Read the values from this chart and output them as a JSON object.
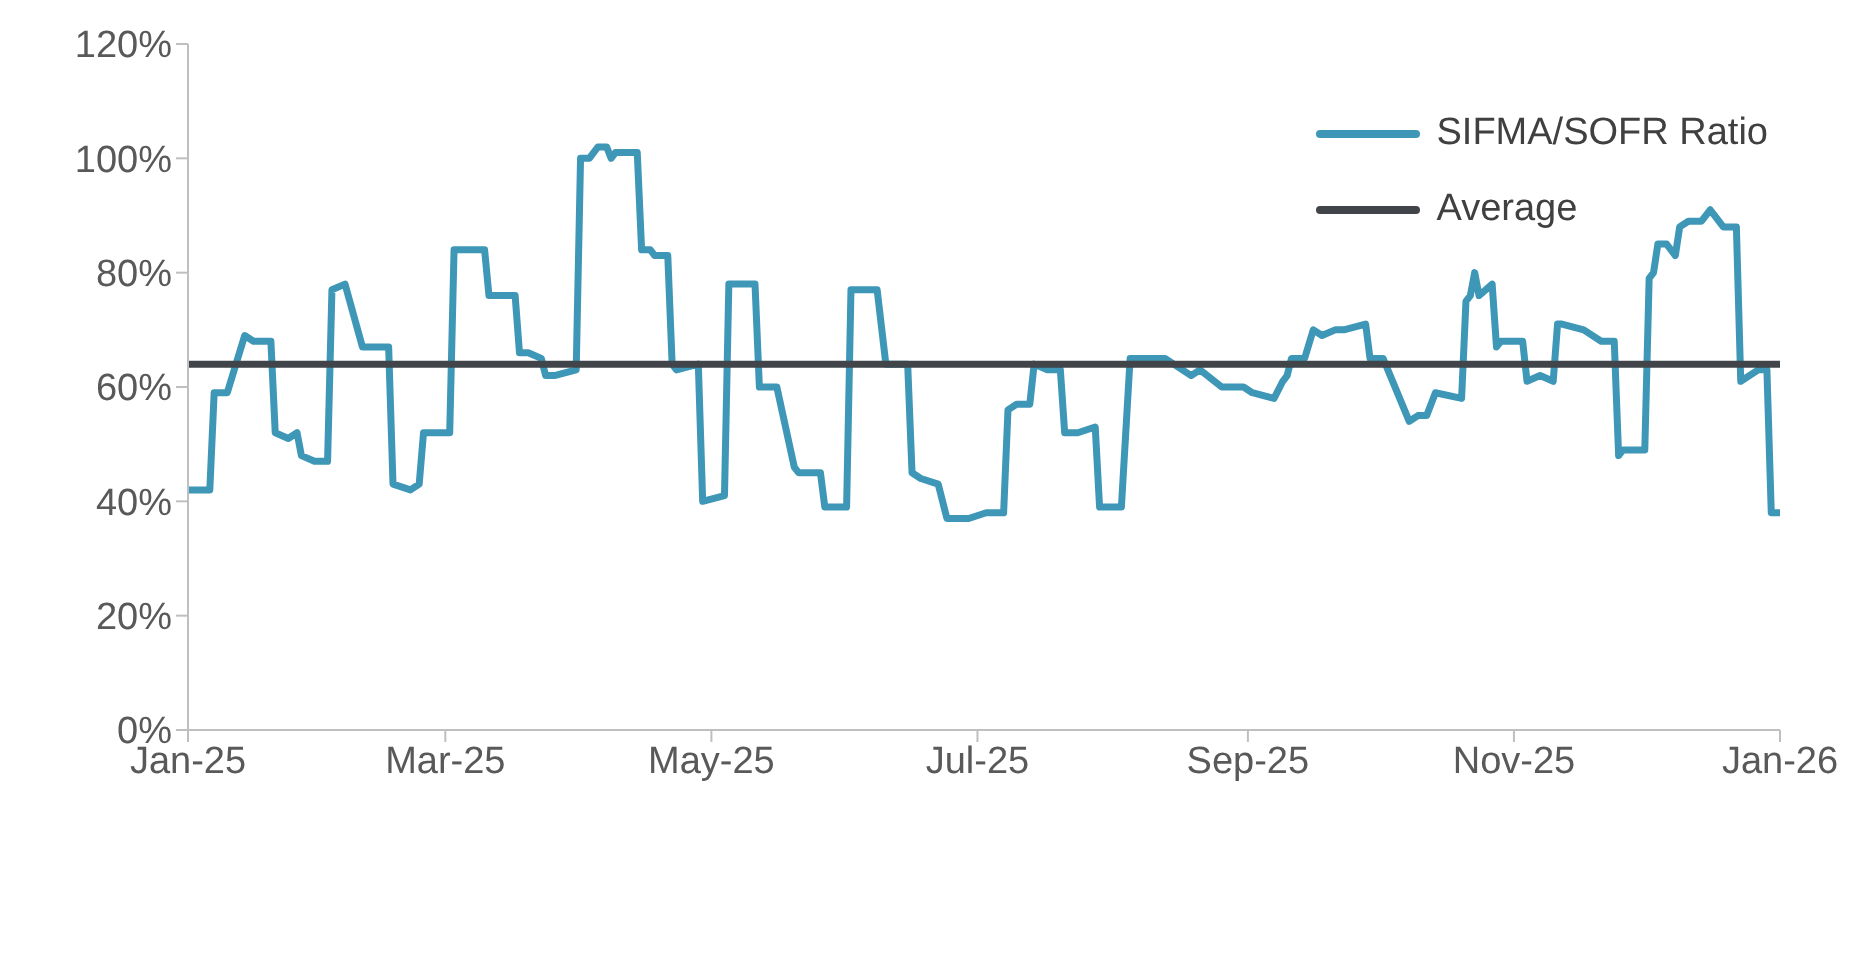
{
  "chart_data": {
    "type": "line",
    "xlim": [
      "2025-01-01",
      "2026-01-01"
    ],
    "ylim": [
      0,
      120
    ],
    "xticks": [
      {
        "value": "2025-01-01",
        "label": "Jan-25"
      },
      {
        "value": "2025-03-01",
        "label": "Mar-25"
      },
      {
        "value": "2025-05-01",
        "label": "May-25"
      },
      {
        "value": "2025-07-01",
        "label": "Jul-25"
      },
      {
        "value": "2025-09-01",
        "label": "Sep-25"
      },
      {
        "value": "2025-11-01",
        "label": "Nov-25"
      },
      {
        "value": "2026-01-01",
        "label": "Jan-26"
      }
    ],
    "yticks": [
      {
        "value": 0,
        "label": "0%"
      },
      {
        "value": 20,
        "label": "20%"
      },
      {
        "value": 40,
        "label": "40%"
      },
      {
        "value": 60,
        "label": "60%"
      },
      {
        "value": 80,
        "label": "80%"
      },
      {
        "value": 100,
        "label": "100%"
      },
      {
        "value": 120,
        "label": "120%"
      }
    ],
    "legend": "top right",
    "marker": "none",
    "line_style": "solid",
    "series": [
      {
        "name": "SIFMA/SOFR Ratio",
        "color": "#3e97b6",
        "x": [
          "2025-01-01",
          "2025-01-06",
          "2025-01-07",
          "2025-01-10",
          "2025-01-14",
          "2025-01-16",
          "2025-01-20",
          "2025-01-21",
          "2025-01-24",
          "2025-01-26",
          "2025-01-27",
          "2025-01-30",
          "2025-02-02",
          "2025-02-03",
          "2025-02-06",
          "2025-02-10",
          "2025-02-12",
          "2025-02-16",
          "2025-02-17",
          "2025-02-21",
          "2025-02-23",
          "2025-02-24",
          "2025-03-02",
          "2025-03-03",
          "2025-03-06",
          "2025-03-10",
          "2025-03-11",
          "2025-03-13",
          "2025-03-17",
          "2025-03-18",
          "2025-03-20",
          "2025-03-23",
          "2025-03-24",
          "2025-03-26",
          "2025-03-31",
          "2025-04-01",
          "2025-04-03",
          "2025-04-05",
          "2025-04-07",
          "2025-04-08",
          "2025-04-09",
          "2025-04-14",
          "2025-04-15",
          "2025-04-17",
          "2025-04-18",
          "2025-04-21",
          "2025-04-22",
          "2025-04-23",
          "2025-04-28",
          "2025-04-29",
          "2025-05-04",
          "2025-05-05",
          "2025-05-11",
          "2025-05-12",
          "2025-05-16",
          "2025-05-20",
          "2025-05-21",
          "2025-05-26",
          "2025-05-27",
          "2025-06-01",
          "2025-06-02",
          "2025-06-08",
          "2025-06-10",
          "2025-06-15",
          "2025-06-16",
          "2025-06-18",
          "2025-06-22",
          "2025-06-24",
          "2025-06-25",
          "2025-06-29",
          "2025-07-03",
          "2025-07-07",
          "2025-07-08",
          "2025-07-10",
          "2025-07-13",
          "2025-07-14",
          "2025-07-17",
          "2025-07-20",
          "2025-07-21",
          "2025-07-24",
          "2025-07-28",
          "2025-07-29",
          "2025-08-03",
          "2025-08-05",
          "2025-08-07",
          "2025-08-13",
          "2025-08-19",
          "2025-08-21",
          "2025-08-26",
          "2025-08-31",
          "2025-09-02",
          "2025-09-07",
          "2025-09-09",
          "2025-09-10",
          "2025-09-11",
          "2025-09-14",
          "2025-09-16",
          "2025-09-18",
          "2025-09-21",
          "2025-09-23",
          "2025-09-28",
          "2025-09-29",
          "2025-10-02",
          "2025-10-08",
          "2025-10-10",
          "2025-10-12",
          "2025-10-14",
          "2025-10-20",
          "2025-10-21",
          "2025-10-22",
          "2025-10-23",
          "2025-10-24",
          "2025-10-27",
          "2025-10-28",
          "2025-10-29",
          "2025-11-03",
          "2025-11-04",
          "2025-11-07",
          "2025-11-10",
          "2025-11-11",
          "2025-11-12",
          "2025-11-17",
          "2025-11-21",
          "2025-11-24",
          "2025-11-25",
          "2025-11-26",
          "2025-12-01",
          "2025-12-02",
          "2025-12-03",
          "2025-12-04",
          "2025-12-06",
          "2025-12-08",
          "2025-12-09",
          "2025-12-11",
          "2025-12-14",
          "2025-12-16",
          "2025-12-19",
          "2025-12-22",
          "2025-12-23",
          "2025-12-27",
          "2025-12-29",
          "2025-12-30",
          "2026-01-01"
        ],
        "values": [
          42,
          42,
          59,
          59,
          69,
          68,
          68,
          52,
          51,
          52,
          48,
          47,
          47,
          77,
          78,
          67,
          67,
          67,
          43,
          42,
          43,
          52,
          52,
          84,
          84,
          84,
          76,
          76,
          76,
          66,
          66,
          65,
          62,
          62,
          63,
          100,
          100,
          102,
          102,
          100,
          101,
          101,
          84,
          84,
          83,
          83,
          64,
          63,
          64,
          40,
          41,
          78,
          78,
          60,
          60,
          46,
          45,
          45,
          39,
          39,
          77,
          77,
          64,
          64,
          45,
          44,
          43,
          37,
          37,
          37,
          38,
          38,
          56,
          57,
          57,
          64,
          63,
          63,
          52,
          52,
          53,
          39,
          39,
          65,
          65,
          65,
          62,
          63,
          60,
          60,
          59,
          58,
          61,
          62,
          65,
          65,
          70,
          69,
          70,
          70,
          71,
          65,
          65,
          54,
          55,
          55,
          59,
          58,
          75,
          76,
          80,
          76,
          78,
          67,
          68,
          68,
          61,
          62,
          61,
          71,
          71,
          70,
          68,
          68,
          48,
          49,
          49,
          79,
          80,
          85,
          85,
          83,
          88,
          89,
          89,
          91,
          88,
          88,
          61,
          63,
          63,
          38,
          38
        ]
      },
      {
        "name": "Average",
        "color": "#414549",
        "x": [
          "2025-01-01",
          "2026-01-01"
        ],
        "values": [
          64,
          64
        ]
      }
    ]
  }
}
